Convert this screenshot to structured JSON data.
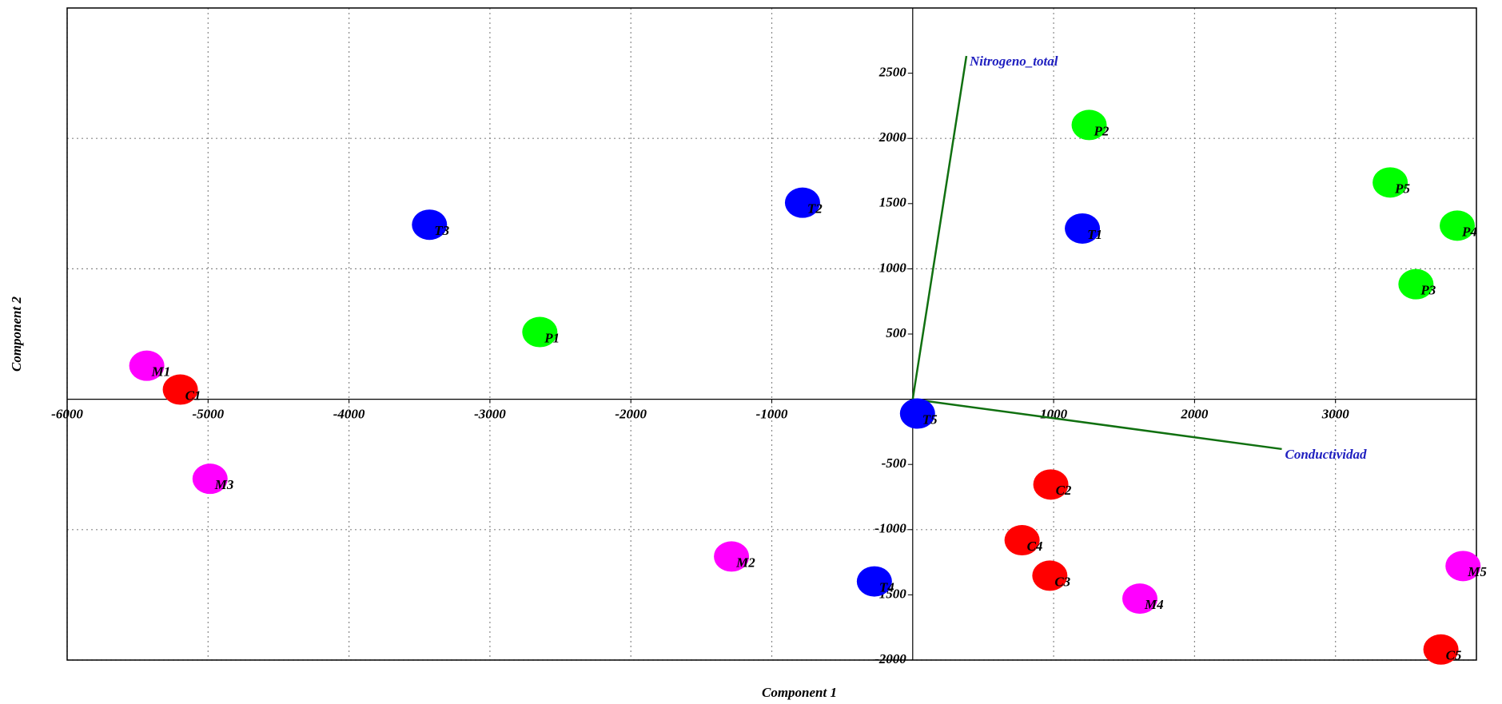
{
  "chart_data": {
    "type": "biplot",
    "x_label": "Component 1",
    "y_label": "Component 2",
    "xlim": [
      -6000,
      4000
    ],
    "ylim": [
      -2000,
      3000
    ],
    "xticks": [
      -6000,
      -5000,
      -4000,
      -3000,
      -2000,
      -1000,
      1000,
      2000,
      3000
    ],
    "yticks": [
      -2000,
      -1500,
      -1000,
      -500,
      500,
      1000,
      1500,
      2000,
      2500
    ],
    "grid": true,
    "points": [
      {
        "label": "M1",
        "x": -5435,
        "y": 257,
        "color": "#ff00ff"
      },
      {
        "label": "C1",
        "x": -5197,
        "y": 74,
        "color": "#ff0000"
      },
      {
        "label": "M3",
        "x": -4986,
        "y": -610,
        "color": "#ff00ff"
      },
      {
        "label": "T3",
        "x": -3429,
        "y": 1338,
        "color": "#0000ff"
      },
      {
        "label": "P1",
        "x": -2646,
        "y": 515,
        "color": "#00ff00"
      },
      {
        "label": "T2",
        "x": -782,
        "y": 1507,
        "color": "#0000ff"
      },
      {
        "label": "M2",
        "x": -1286,
        "y": -1206,
        "color": "#ff00ff"
      },
      {
        "label": "T4",
        "x": -272,
        "y": -1397,
        "color": "#0000ff"
      },
      {
        "label": "T5",
        "x": 34,
        "y": -110,
        "color": "#0000ff"
      },
      {
        "label": "P2",
        "x": 1252,
        "y": 2103,
        "color": "#00ff00"
      },
      {
        "label": "T1",
        "x": 1204,
        "y": 1309,
        "color": "#0000ff"
      },
      {
        "label": "P5",
        "x": 3388,
        "y": 1662,
        "color": "#00ff00"
      },
      {
        "label": "P4",
        "x": 3864,
        "y": 1331,
        "color": "#00ff00"
      },
      {
        "label": "P3",
        "x": 3571,
        "y": 882,
        "color": "#00ff00"
      },
      {
        "label": "C2",
        "x": 980,
        "y": -654,
        "color": "#ff0000"
      },
      {
        "label": "C4",
        "x": 776,
        "y": -1081,
        "color": "#ff0000"
      },
      {
        "label": "C3",
        "x": 973,
        "y": -1353,
        "color": "#ff0000"
      },
      {
        "label": "M4",
        "x": 1612,
        "y": -1529,
        "color": "#ff00ff"
      },
      {
        "label": "M5",
        "x": 3905,
        "y": -1279,
        "color": "#ff00ff"
      },
      {
        "label": "C5",
        "x": 3748,
        "y": -1919,
        "color": "#ff0000"
      }
    ],
    "vectors": [
      {
        "label": "Nitrogeno_total",
        "x": 381,
        "y": 2632
      },
      {
        "label": "Conductividad",
        "x": 2619,
        "y": -382
      }
    ],
    "vector_color": "#107010",
    "vector_label_color": "#2020c0"
  }
}
